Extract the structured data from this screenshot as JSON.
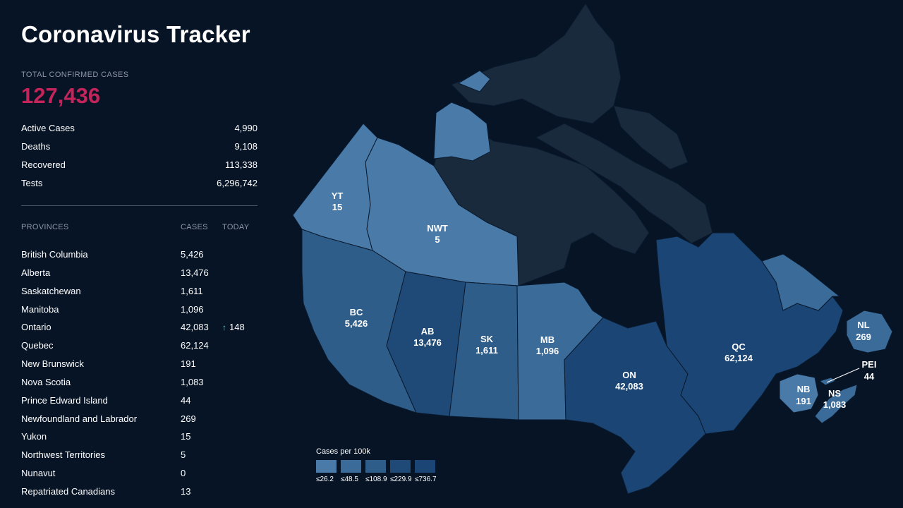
{
  "title": "Coronavirus Tracker",
  "total": {
    "label": "TOTAL CONFIRMED CASES",
    "value": "127,436"
  },
  "stats": [
    {
      "label": "Active Cases",
      "value": "4,990"
    },
    {
      "label": "Deaths",
      "value": "9,108"
    },
    {
      "label": "Recovered",
      "value": "113,338"
    },
    {
      "label": "Tests",
      "value": "6,296,742"
    }
  ],
  "provinces_table": {
    "headers": {
      "province": "PROVINCES",
      "cases": "CASES",
      "today": "TODAY"
    },
    "rows": [
      {
        "name": "British Columbia",
        "cases": "5,426",
        "today": ""
      },
      {
        "name": "Alberta",
        "cases": "13,476",
        "today": ""
      },
      {
        "name": "Saskatchewan",
        "cases": "1,611",
        "today": ""
      },
      {
        "name": "Manitoba",
        "cases": "1,096",
        "today": ""
      },
      {
        "name": "Ontario",
        "cases": "42,083",
        "today": "148"
      },
      {
        "name": "Quebec",
        "cases": "62,124",
        "today": ""
      },
      {
        "name": "New Brunswick",
        "cases": "191",
        "today": ""
      },
      {
        "name": "Nova Scotia",
        "cases": "1,083",
        "today": ""
      },
      {
        "name": "Prince Edward Island",
        "cases": "44",
        "today": ""
      },
      {
        "name": "Newfoundland and Labrador",
        "cases": "269",
        "today": ""
      },
      {
        "name": "Yukon",
        "cases": "15",
        "today": ""
      },
      {
        "name": "Northwest Territories",
        "cases": "5",
        "today": ""
      },
      {
        "name": "Nunavut",
        "cases": "0",
        "today": ""
      },
      {
        "name": "Repatriated Canadians",
        "cases": "13",
        "today": ""
      }
    ]
  },
  "map": {
    "regions": {
      "yt": {
        "abbr": "YT",
        "cases": "15",
        "color": "#4a7aa8"
      },
      "nwt": {
        "abbr": "NWT",
        "cases": "5",
        "color": "#4a7aa8"
      },
      "nu": {
        "abbr": "",
        "cases": "",
        "color": "#1a2a3d"
      },
      "bc": {
        "abbr": "BC",
        "cases": "5,426",
        "color": "#2e5d8a"
      },
      "ab": {
        "abbr": "AB",
        "cases": "13,476",
        "color": "#1f4a77"
      },
      "sk": {
        "abbr": "SK",
        "cases": "1,611",
        "color": "#2e5d8a"
      },
      "mb": {
        "abbr": "MB",
        "cases": "1,096",
        "color": "#3a6b99"
      },
      "on": {
        "abbr": "ON",
        "cases": "42,083",
        "color": "#1a4574"
      },
      "qc": {
        "abbr": "QC",
        "cases": "62,124",
        "color": "#1a4574"
      },
      "nl": {
        "abbr": "NL",
        "cases": "269",
        "color": "#3a6b99"
      },
      "nb": {
        "abbr": "NB",
        "cases": "191",
        "color": "#4a7aa8"
      },
      "ns": {
        "abbr": "NS",
        "cases": "1,083",
        "color": "#3a6b99"
      },
      "pei": {
        "abbr": "PEI",
        "cases": "44",
        "color": "#3a6b99"
      }
    },
    "legend": {
      "title": "Cases per 100k",
      "bins": [
        {
          "label": "≤26.2",
          "color": "#4a7aa8"
        },
        {
          "label": "≤48.5",
          "color": "#3a6b99"
        },
        {
          "label": "≤108.9",
          "color": "#2e5d8a"
        },
        {
          "label": "≤229.9",
          "color": "#1f4a77"
        },
        {
          "label": "≤736.7",
          "color": "#1a4574"
        }
      ]
    }
  }
}
